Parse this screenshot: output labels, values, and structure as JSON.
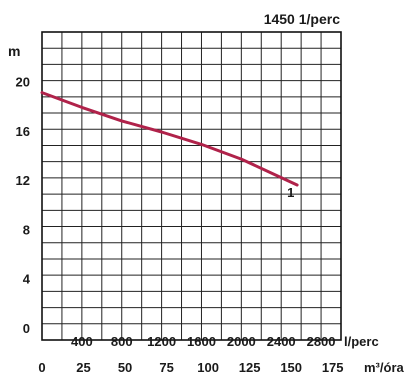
{
  "chart_data": {
    "type": "line",
    "speed_label": "1450 1/perc",
    "ylabel": "m",
    "ylim": [
      0,
      24
    ],
    "yticks": [
      "0",
      "4",
      "8",
      "12",
      "16",
      "20"
    ],
    "x_lpm": {
      "range": [
        0,
        3000
      ],
      "ticks": [
        400,
        800,
        1200,
        1600,
        2000,
        2400,
        2800
      ],
      "tick_labels": [
        "400",
        "800",
        "1200",
        "1600",
        "2000",
        "2400",
        "2800"
      ],
      "unit": "l/perc"
    },
    "x_m3h": {
      "range": [
        0,
        180
      ],
      "ticks": [
        0,
        25,
        50,
        75,
        100,
        125,
        150,
        175
      ],
      "tick_labels": [
        "0",
        "25",
        "50",
        "75",
        "100",
        "125",
        "150",
        "175"
      ],
      "unit": "m³/óra"
    },
    "grid": true,
    "series": [
      {
        "name": "1",
        "color": "#b0224a",
        "x_lpm": [
          0,
          400,
          800,
          1200,
          1600,
          2000,
          2400,
          2560
        ],
        "y": [
          19.1,
          17.9,
          16.8,
          15.9,
          14.9,
          13.7,
          12.2,
          11.6
        ]
      }
    ]
  }
}
